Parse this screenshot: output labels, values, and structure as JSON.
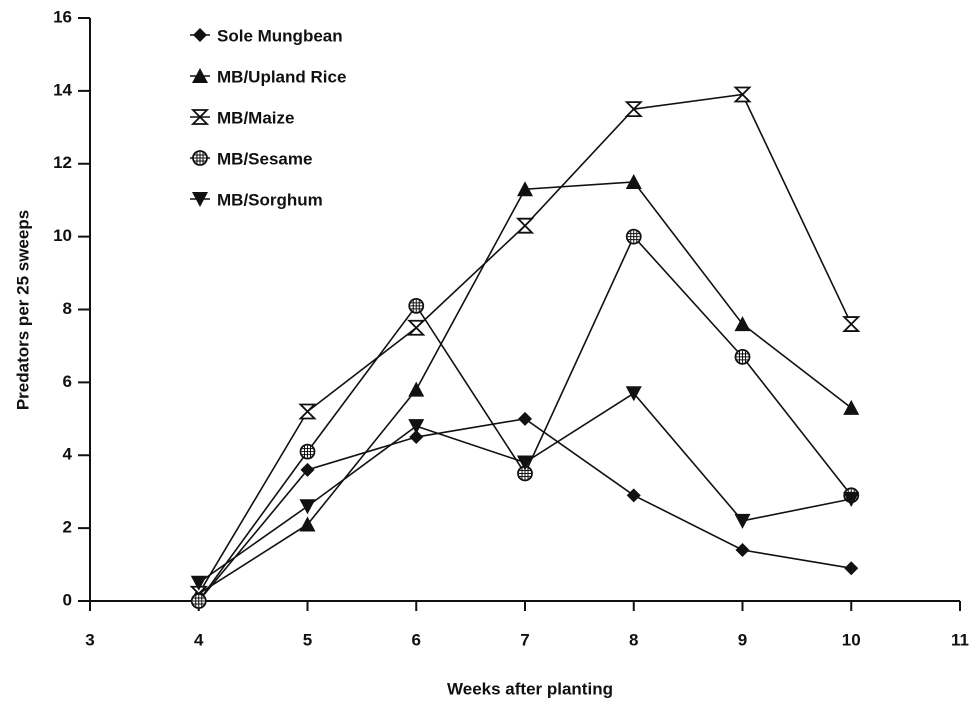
{
  "chart_data": {
    "type": "line",
    "x_label": "Weeks after planting",
    "y_label": "Predators per 25 sweeps",
    "x": [
      4,
      5,
      6,
      7,
      8,
      9,
      10
    ],
    "xlim": [
      3,
      11
    ],
    "xticks": [
      3,
      4,
      5,
      6,
      7,
      8,
      9,
      10,
      11
    ],
    "ylim": [
      0,
      16
    ],
    "yticks": [
      0,
      2,
      4,
      6,
      8,
      10,
      12,
      14,
      16
    ],
    "grid": false,
    "legend": "top-left",
    "series": [
      {
        "name": "Sole Mungbean",
        "color": "#111111",
        "marker": "diamond",
        "values": [
          0,
          3.6,
          4.5,
          5.0,
          2.9,
          1.4,
          0.9
        ]
      },
      {
        "name": "MB/Upland Rice",
        "color": "#111111",
        "marker": "triangle-up",
        "values": [
          0.2,
          2.1,
          5.8,
          11.3,
          11.5,
          7.6,
          5.3
        ]
      },
      {
        "name": "MB/Maize",
        "color": "#111111",
        "marker": "hourglass",
        "values": [
          0.2,
          5.2,
          7.5,
          10.3,
          13.5,
          13.9,
          7.6
        ]
      },
      {
        "name": "MB/Sesame",
        "color": "#111111",
        "marker": "hatched-circle",
        "values": [
          0,
          4.1,
          8.1,
          3.5,
          10.0,
          6.7,
          2.9
        ]
      },
      {
        "name": "MB/Sorghum",
        "color": "#111111",
        "marker": "triangle-down",
        "values": [
          0.5,
          2.6,
          4.8,
          3.8,
          5.7,
          2.2,
          2.8
        ]
      }
    ]
  }
}
